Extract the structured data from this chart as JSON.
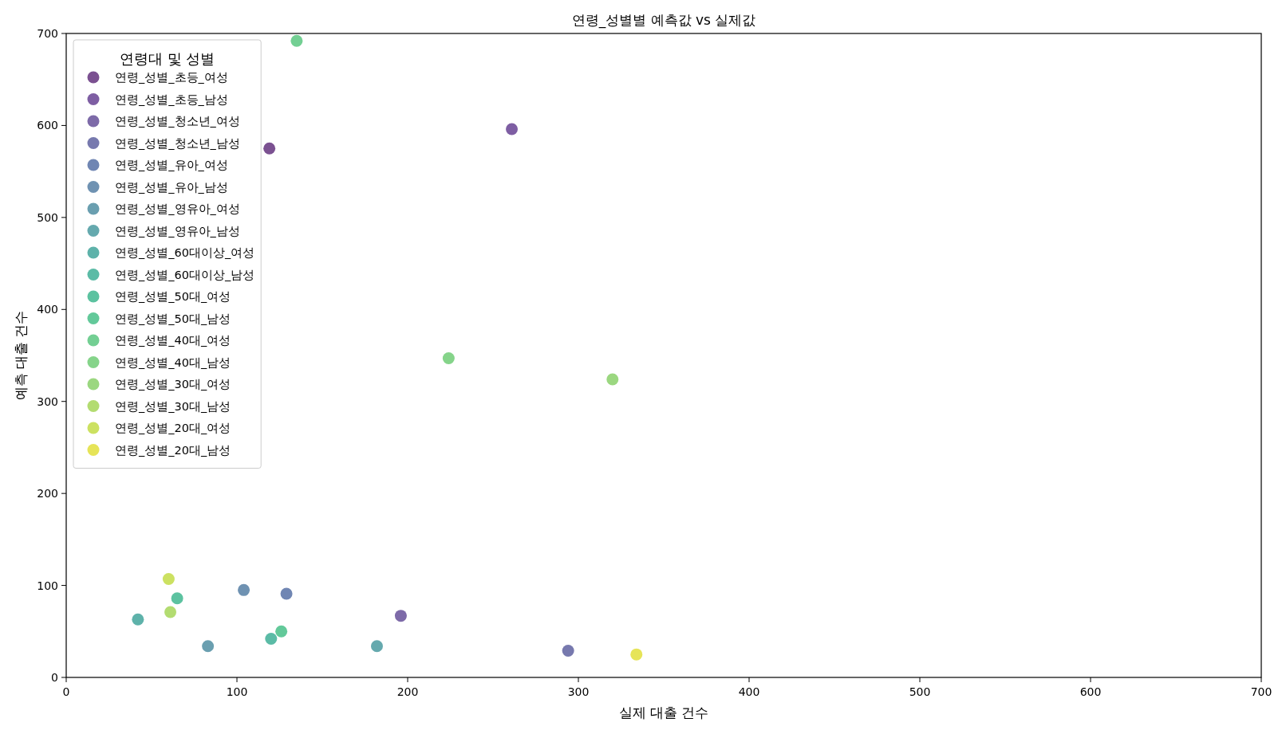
{
  "chart_data": {
    "type": "scatter",
    "title": "연령_성별별 예측값 vs 실제값",
    "xlabel": "실제 대출 건수",
    "ylabel": "예측 대출 건수",
    "legend_title": "연령대 및 성별",
    "legend": "top left",
    "marker": "circle",
    "grid": false,
    "xlim": [
      0,
      700
    ],
    "ylim": [
      0,
      700
    ],
    "xticks": [
      0,
      100,
      200,
      300,
      400,
      500,
      600,
      700
    ],
    "yticks": [
      0,
      100,
      200,
      300,
      400,
      500,
      600,
      700
    ],
    "series": [
      {
        "name": "연령_성별_초등_여성",
        "color": "#7b5191",
        "x": [
          119
        ],
        "values": [
          575
        ]
      },
      {
        "name": "연령_성별_초등_남성",
        "color": "#7e5ea3",
        "x": [
          261
        ],
        "values": [
          596
        ]
      },
      {
        "name": "연령_성별_청소년_여성",
        "color": "#7d6aa8",
        "x": [
          196
        ],
        "values": [
          67
        ]
      },
      {
        "name": "연령_성별_청소년_남성",
        "color": "#7779ae",
        "x": [
          294
        ],
        "values": [
          29
        ]
      },
      {
        "name": "연령_성별_유아_여성",
        "color": "#7086b3",
        "x": [
          129
        ],
        "values": [
          91
        ]
      },
      {
        "name": "연령_성별_유아_남성",
        "color": "#6f92b2",
        "x": [
          104
        ],
        "values": [
          95
        ]
      },
      {
        "name": "연령_성별_영유아_여성",
        "color": "#6a9fb0",
        "x": [
          83
        ],
        "values": [
          34
        ]
      },
      {
        "name": "연령_성별_영유아_남성",
        "color": "#65a9ae",
        "x": [
          182
        ],
        "values": [
          34
        ]
      },
      {
        "name": "연령_성별_60대이상_여성",
        "color": "#5eb2aa",
        "x": [
          42
        ],
        "values": [
          63
        ]
      },
      {
        "name": "연령_성별_60대이상_남성",
        "color": "#5bbba6",
        "x": [
          120
        ],
        "values": [
          42
        ]
      },
      {
        "name": "연령_성별_50대_여성",
        "color": "#5cc2a0",
        "x": [
          65
        ],
        "values": [
          86
        ]
      },
      {
        "name": "연령_성별_50대_남성",
        "color": "#63c99a",
        "x": [
          126
        ],
        "values": [
          50
        ]
      },
      {
        "name": "연령_성별_40대_여성",
        "color": "#73cf93",
        "x": [
          135
        ],
        "values": [
          692
        ]
      },
      {
        "name": "연령_성별_40대_남성",
        "color": "#85d48a",
        "x": [
          224
        ],
        "values": [
          347
        ]
      },
      {
        "name": "연령_성별_30대_여성",
        "color": "#9bd780",
        "x": [
          320
        ],
        "values": [
          324
        ]
      },
      {
        "name": "연령_성별_30대_남성",
        "color": "#b3dc71",
        "x": [
          61
        ],
        "values": [
          71
        ]
      },
      {
        "name": "연령_성별_20대_여성",
        "color": "#cce161",
        "x": [
          60
        ],
        "values": [
          107
        ]
      },
      {
        "name": "연령_성별_20대_남성",
        "color": "#e6e458",
        "x": [
          334
        ],
        "values": [
          25
        ]
      }
    ]
  }
}
